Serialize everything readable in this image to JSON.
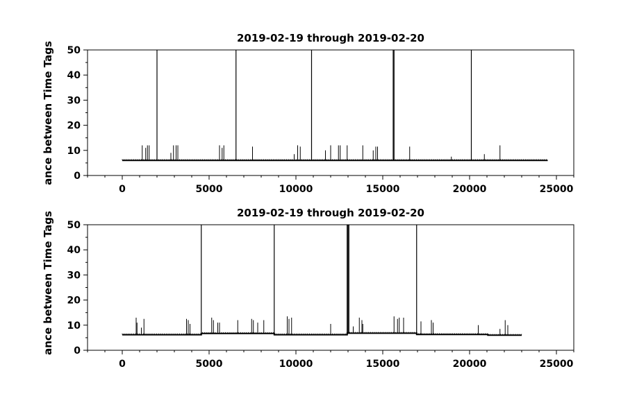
{
  "chart_data": [
    {
      "type": "line",
      "title": "2019-02-19 through 2019-02-20",
      "xlabel": "",
      "ylabel": "ance between Time Tags",
      "xlim": [
        -2000,
        26000
      ],
      "ylim": [
        0,
        50
      ],
      "xticks": [
        0,
        5000,
        10000,
        15000,
        20000,
        25000
      ],
      "yticks": [
        0,
        10,
        20,
        30,
        40,
        50
      ],
      "grid": false,
      "baseline": {
        "x": [
          0,
          24500
        ],
        "y": [
          6.0,
          6.0
        ]
      },
      "series": [
        {
          "x": [
            1150,
            1350,
            1450,
            1550,
            2000,
            2800,
            2950,
            3100,
            3200,
            5600,
            5750,
            5850,
            6550,
            7500,
            9900,
            10100,
            10250,
            10900,
            11700,
            12000,
            12450,
            12550,
            12950,
            13850,
            14450,
            14600,
            14700,
            15600,
            15650,
            16550,
            18950,
            20100,
            20850,
            21750
          ],
          "y": [
            12,
            11,
            12,
            12,
            50,
            9,
            12,
            12,
            12,
            12,
            11,
            12,
            50,
            11.5,
            8.5,
            12,
            11.5,
            50,
            10,
            12,
            12,
            12,
            12,
            12,
            10,
            11.5,
            11.5,
            50,
            50,
            11.5,
            7.5,
            50,
            8.5,
            12
          ]
        }
      ]
    },
    {
      "type": "line",
      "title": "2019-02-19 through 2019-02-20",
      "xlabel": "",
      "ylabel": "ance between Time Tags",
      "xlim": [
        -2000,
        26000
      ],
      "ylim": [
        0,
        50
      ],
      "xticks": [
        0,
        5000,
        10000,
        15000,
        20000,
        25000
      ],
      "yticks": [
        0,
        10,
        20,
        30,
        40,
        50
      ],
      "grid": false,
      "baseline": {
        "x": [
          0,
          4550,
          4550,
          8750,
          8750,
          12950,
          12950,
          16950,
          16950,
          21050,
          21050,
          23000
        ],
        "y": [
          6.2,
          6.2,
          6.7,
          6.7,
          6.2,
          6.2,
          6.8,
          6.8,
          6.3,
          6.3,
          6.0,
          6.0
        ]
      },
      "series": [
        {
          "x": [
            800,
            850,
            1100,
            1250,
            3700,
            3800,
            3900,
            4550,
            5150,
            5250,
            5500,
            5600,
            6650,
            7450,
            7550,
            7800,
            8150,
            8750,
            9500,
            9600,
            9750,
            12000,
            12950,
            13000,
            13050,
            13300,
            13650,
            13800,
            13850,
            15650,
            15850,
            15950,
            16200,
            16950,
            17200,
            17800,
            17900,
            20500,
            21750,
            22050,
            22200
          ],
          "y": [
            13,
            11,
            9,
            12.5,
            12.5,
            12,
            10.5,
            50,
            13,
            12,
            11,
            11,
            12,
            12.5,
            12,
            11,
            12,
            50,
            13.5,
            12.5,
            13,
            10.5,
            50,
            50,
            50,
            9.5,
            13,
            12,
            10.5,
            13.5,
            12.5,
            13,
            13,
            50,
            11.5,
            12,
            11,
            10,
            8.5,
            12,
            10
          ]
        }
      ]
    }
  ]
}
